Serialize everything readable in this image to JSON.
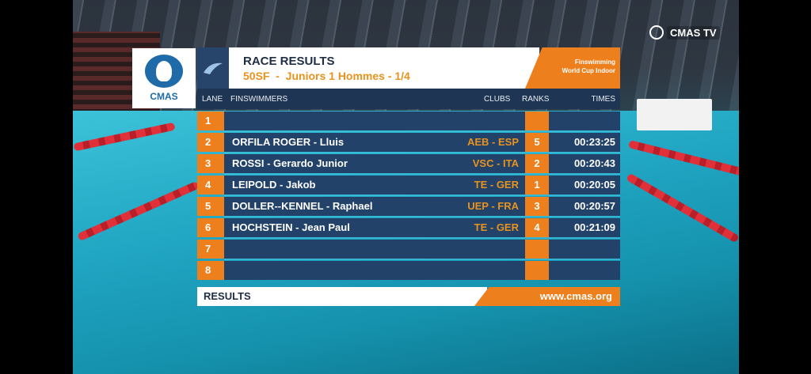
{
  "broadcast": {
    "channel_logo_text": "CMAS TV",
    "federation_logo_text": "CMAS"
  },
  "header": {
    "title": "RACE RESULTS",
    "subtitle": "50SF  -  Juniors 1 Hommes - 1/4",
    "event_line1": "Finswimming",
    "event_line2": "World Cup Indoor"
  },
  "columns": {
    "lane": "LANE",
    "athlete": "FINSWIMMERS",
    "club": "CLUBS",
    "rank": "RANKS",
    "time": "TIMES"
  },
  "rows": [
    {
      "lane": "1",
      "name": "",
      "club": "",
      "rank": "",
      "time": ""
    },
    {
      "lane": "2",
      "name": "ORFILA ROGER - Lluis",
      "club": "AEB - ESP",
      "rank": "5",
      "time": "00:23:25"
    },
    {
      "lane": "3",
      "name": "ROSSI - Gerardo Junior",
      "club": "VSC - ITA",
      "rank": "2",
      "time": "00:20:43"
    },
    {
      "lane": "4",
      "name": "LEIPOLD - Jakob",
      "club": "TE - GER",
      "rank": "1",
      "time": "00:20:05"
    },
    {
      "lane": "5",
      "name": "DOLLER--KENNEL - Raphael",
      "club": "UEP - FRA",
      "rank": "3",
      "time": "00:20:57"
    },
    {
      "lane": "6",
      "name": "HOCHSTEIN - Jean Paul",
      "club": "TE - GER",
      "rank": "4",
      "time": "00:21:09"
    },
    {
      "lane": "7",
      "name": "",
      "club": "",
      "rank": "",
      "time": ""
    },
    {
      "lane": "8",
      "name": "",
      "club": "",
      "rank": "",
      "time": ""
    }
  ],
  "footer": {
    "label": "RESULTS",
    "url": "www.cmas.org"
  },
  "colors": {
    "navy": "#23426a",
    "orange": "#ee7f1d",
    "gold": "#e8931d",
    "pool": "#20a5c2"
  }
}
